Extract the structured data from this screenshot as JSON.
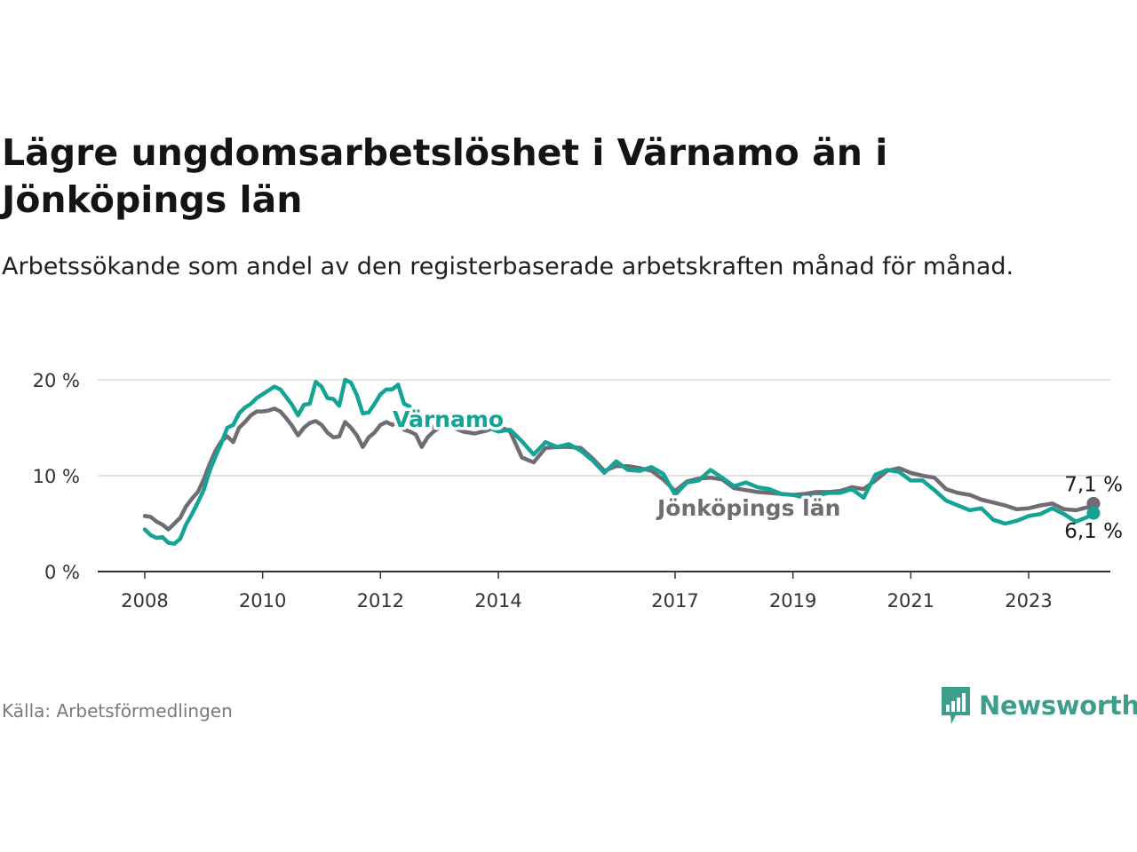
{
  "title": "Lägre ungdomsarbetslöshet i Värnamo än i Jönköpings län",
  "subtitle": "Arbetssökande som andel av den registerbaserade arbetskraften månad för månad.",
  "source": "Källa: Arbetsförmedlingen",
  "brand": "Newsworthy",
  "colors": {
    "varnamo": "#14a394",
    "jonkoping": "#6f6d73",
    "grid": "#dcdcdc",
    "axis": "#333333",
    "brand": "#3e9e8c"
  },
  "chart_data": {
    "type": "line",
    "title": "Lägre ungdomsarbetslöshet i Värnamo än i Jönköpings län",
    "ylabel": "",
    "xlabel": "",
    "xlim": [
      2007.9,
      2024.6
    ],
    "ylim": [
      0,
      20
    ],
    "grid": true,
    "y_ticks": [
      0,
      10,
      20
    ],
    "y_tick_labels": [
      "0 %",
      "10 %",
      "20 %"
    ],
    "x_ticks": [
      2008,
      2010,
      2012,
      2014,
      2017,
      2019,
      2021,
      2023
    ],
    "x_tick_labels": [
      "2008",
      "2010",
      "2012",
      "2014",
      "2017",
      "2019",
      "2021",
      "2023"
    ],
    "series": [
      {
        "name": "Jönköpings län",
        "label": "Jönköpings län",
        "color_key": "jonkoping",
        "end_label": "7,1 %",
        "end_value": 7.1,
        "points": [
          [
            2008.0,
            5.8
          ],
          [
            2008.1,
            5.7
          ],
          [
            2008.2,
            5.2
          ],
          [
            2008.3,
            4.9
          ],
          [
            2008.4,
            4.4
          ],
          [
            2008.5,
            5.0
          ],
          [
            2008.6,
            5.6
          ],
          [
            2008.7,
            6.8
          ],
          [
            2008.8,
            7.6
          ],
          [
            2008.9,
            8.3
          ],
          [
            2009.0,
            9.6
          ],
          [
            2009.1,
            11.2
          ],
          [
            2009.2,
            12.6
          ],
          [
            2009.3,
            13.6
          ],
          [
            2009.4,
            14.1
          ],
          [
            2009.5,
            13.5
          ],
          [
            2009.6,
            15.0
          ],
          [
            2009.7,
            15.6
          ],
          [
            2009.8,
            16.3
          ],
          [
            2009.9,
            16.7
          ],
          [
            2010.0,
            16.7
          ],
          [
            2010.1,
            16.8
          ],
          [
            2010.2,
            17.0
          ],
          [
            2010.3,
            16.7
          ],
          [
            2010.4,
            16.0
          ],
          [
            2010.5,
            15.2
          ],
          [
            2010.6,
            14.2
          ],
          [
            2010.7,
            15.0
          ],
          [
            2010.8,
            15.5
          ],
          [
            2010.9,
            15.7
          ],
          [
            2011.0,
            15.3
          ],
          [
            2011.1,
            14.5
          ],
          [
            2011.2,
            14.0
          ],
          [
            2011.3,
            14.1
          ],
          [
            2011.4,
            15.6
          ],
          [
            2011.5,
            15.0
          ],
          [
            2011.6,
            14.2
          ],
          [
            2011.7,
            13.0
          ],
          [
            2011.8,
            14.0
          ],
          [
            2011.9,
            14.5
          ],
          [
            2012.0,
            15.3
          ],
          [
            2012.1,
            15.6
          ],
          [
            2012.2,
            15.3
          ],
          [
            2012.3,
            15.6
          ],
          [
            2012.4,
            14.8
          ],
          [
            2012.5,
            14.6
          ],
          [
            2012.6,
            14.3
          ],
          [
            2012.7,
            13.0
          ],
          [
            2012.8,
            14.0
          ],
          [
            2012.9,
            14.6
          ],
          [
            2013.0,
            15.0
          ],
          [
            2013.2,
            15.1
          ],
          [
            2013.4,
            14.6
          ],
          [
            2013.6,
            14.4
          ],
          [
            2013.8,
            14.7
          ],
          [
            2014.0,
            15.2
          ],
          [
            2014.2,
            14.6
          ],
          [
            2014.4,
            11.9
          ],
          [
            2014.6,
            11.4
          ],
          [
            2014.8,
            12.9
          ],
          [
            2015.0,
            13.0
          ],
          [
            2015.2,
            13.0
          ],
          [
            2015.4,
            12.9
          ],
          [
            2015.6,
            11.8
          ],
          [
            2015.8,
            10.5
          ],
          [
            2016.0,
            11.0
          ],
          [
            2016.2,
            11.0
          ],
          [
            2016.4,
            10.8
          ],
          [
            2016.6,
            10.5
          ],
          [
            2016.8,
            9.6
          ],
          [
            2017.0,
            8.4
          ],
          [
            2017.2,
            9.4
          ],
          [
            2017.4,
            9.7
          ],
          [
            2017.6,
            9.8
          ],
          [
            2017.8,
            9.6
          ],
          [
            2018.0,
            8.7
          ],
          [
            2018.2,
            8.5
          ],
          [
            2018.4,
            8.3
          ],
          [
            2018.6,
            8.2
          ],
          [
            2018.8,
            8.1
          ],
          [
            2019.0,
            8.0
          ],
          [
            2019.2,
            8.1
          ],
          [
            2019.4,
            8.3
          ],
          [
            2019.6,
            8.3
          ],
          [
            2019.8,
            8.4
          ],
          [
            2020.0,
            8.8
          ],
          [
            2020.2,
            8.6
          ],
          [
            2020.4,
            9.5
          ],
          [
            2020.6,
            10.5
          ],
          [
            2020.8,
            10.8
          ],
          [
            2021.0,
            10.3
          ],
          [
            2021.2,
            10.0
          ],
          [
            2021.4,
            9.8
          ],
          [
            2021.6,
            8.6
          ],
          [
            2021.8,
            8.2
          ],
          [
            2022.0,
            8.0
          ],
          [
            2022.2,
            7.5
          ],
          [
            2022.4,
            7.2
          ],
          [
            2022.6,
            6.9
          ],
          [
            2022.8,
            6.5
          ],
          [
            2023.0,
            6.6
          ],
          [
            2023.2,
            6.9
          ],
          [
            2023.4,
            7.1
          ],
          [
            2023.6,
            6.5
          ],
          [
            2023.8,
            6.4
          ],
          [
            2024.0,
            6.7
          ],
          [
            2024.1,
            7.1
          ]
        ]
      },
      {
        "name": "Värnamo",
        "label": "Värnamo",
        "color_key": "varnamo",
        "end_label": "6,1 %",
        "end_value": 6.1,
        "points": [
          [
            2008.0,
            4.4
          ],
          [
            2008.1,
            3.8
          ],
          [
            2008.2,
            3.5
          ],
          [
            2008.3,
            3.6
          ],
          [
            2008.4,
            3.0
          ],
          [
            2008.5,
            2.9
          ],
          [
            2008.6,
            3.4
          ],
          [
            2008.7,
            4.9
          ],
          [
            2008.8,
            6.0
          ],
          [
            2008.9,
            7.2
          ],
          [
            2009.0,
            8.5
          ],
          [
            2009.1,
            10.5
          ],
          [
            2009.2,
            12.0
          ],
          [
            2009.3,
            13.4
          ],
          [
            2009.4,
            15.0
          ],
          [
            2009.5,
            15.3
          ],
          [
            2009.6,
            16.5
          ],
          [
            2009.7,
            17.1
          ],
          [
            2009.8,
            17.5
          ],
          [
            2009.9,
            18.1
          ],
          [
            2010.0,
            18.5
          ],
          [
            2010.1,
            18.9
          ],
          [
            2010.2,
            19.3
          ],
          [
            2010.3,
            19.0
          ],
          [
            2010.4,
            18.2
          ],
          [
            2010.5,
            17.4
          ],
          [
            2010.6,
            16.3
          ],
          [
            2010.7,
            17.4
          ],
          [
            2010.8,
            17.5
          ],
          [
            2010.9,
            19.8
          ],
          [
            2011.0,
            19.3
          ],
          [
            2011.1,
            18.1
          ],
          [
            2011.2,
            18.0
          ],
          [
            2011.3,
            17.3
          ],
          [
            2011.4,
            20.0
          ],
          [
            2011.5,
            19.7
          ],
          [
            2011.6,
            18.4
          ],
          [
            2011.7,
            16.5
          ],
          [
            2011.8,
            16.6
          ],
          [
            2011.9,
            17.5
          ],
          [
            2012.0,
            18.5
          ],
          [
            2012.1,
            19.0
          ],
          [
            2012.2,
            19.0
          ],
          [
            2012.3,
            19.5
          ],
          [
            2012.4,
            17.5
          ],
          [
            2012.5,
            17.2
          ],
          [
            2012.6,
            16.0
          ],
          [
            2012.7,
            15.0
          ],
          [
            2012.8,
            15.0
          ],
          [
            2012.9,
            15.1
          ],
          [
            2013.0,
            15.3
          ],
          [
            2013.2,
            15.7
          ],
          [
            2013.4,
            15.3
          ],
          [
            2013.6,
            15.4
          ],
          [
            2013.8,
            15.1
          ],
          [
            2014.0,
            14.6
          ],
          [
            2014.2,
            14.8
          ],
          [
            2014.4,
            13.6
          ],
          [
            2014.6,
            12.2
          ],
          [
            2014.8,
            13.5
          ],
          [
            2015.0,
            13.0
          ],
          [
            2015.2,
            13.3
          ],
          [
            2015.4,
            12.6
          ],
          [
            2015.6,
            11.6
          ],
          [
            2015.8,
            10.3
          ],
          [
            2016.0,
            11.5
          ],
          [
            2016.2,
            10.6
          ],
          [
            2016.4,
            10.5
          ],
          [
            2016.6,
            10.9
          ],
          [
            2016.8,
            10.2
          ],
          [
            2017.0,
            8.0
          ],
          [
            2017.2,
            9.3
          ],
          [
            2017.4,
            9.5
          ],
          [
            2017.6,
            10.6
          ],
          [
            2017.8,
            9.8
          ],
          [
            2018.0,
            8.9
          ],
          [
            2018.2,
            9.3
          ],
          [
            2018.4,
            8.8
          ],
          [
            2018.6,
            8.6
          ],
          [
            2018.8,
            8.1
          ],
          [
            2019.0,
            8.0
          ],
          [
            2019.2,
            7.7
          ],
          [
            2019.4,
            7.9
          ],
          [
            2019.6,
            8.2
          ],
          [
            2019.8,
            8.2
          ],
          [
            2020.0,
            8.6
          ],
          [
            2020.2,
            7.7
          ],
          [
            2020.4,
            10.1
          ],
          [
            2020.6,
            10.6
          ],
          [
            2020.8,
            10.4
          ],
          [
            2021.0,
            9.5
          ],
          [
            2021.2,
            9.5
          ],
          [
            2021.4,
            8.5
          ],
          [
            2021.6,
            7.4
          ],
          [
            2021.8,
            6.9
          ],
          [
            2022.0,
            6.4
          ],
          [
            2022.2,
            6.6
          ],
          [
            2022.4,
            5.4
          ],
          [
            2022.6,
            5.0
          ],
          [
            2022.8,
            5.3
          ],
          [
            2023.0,
            5.8
          ],
          [
            2023.2,
            6.0
          ],
          [
            2023.4,
            6.6
          ],
          [
            2023.6,
            6.0
          ],
          [
            2023.8,
            5.2
          ],
          [
            2024.0,
            5.7
          ],
          [
            2024.1,
            6.1
          ]
        ]
      }
    ]
  }
}
